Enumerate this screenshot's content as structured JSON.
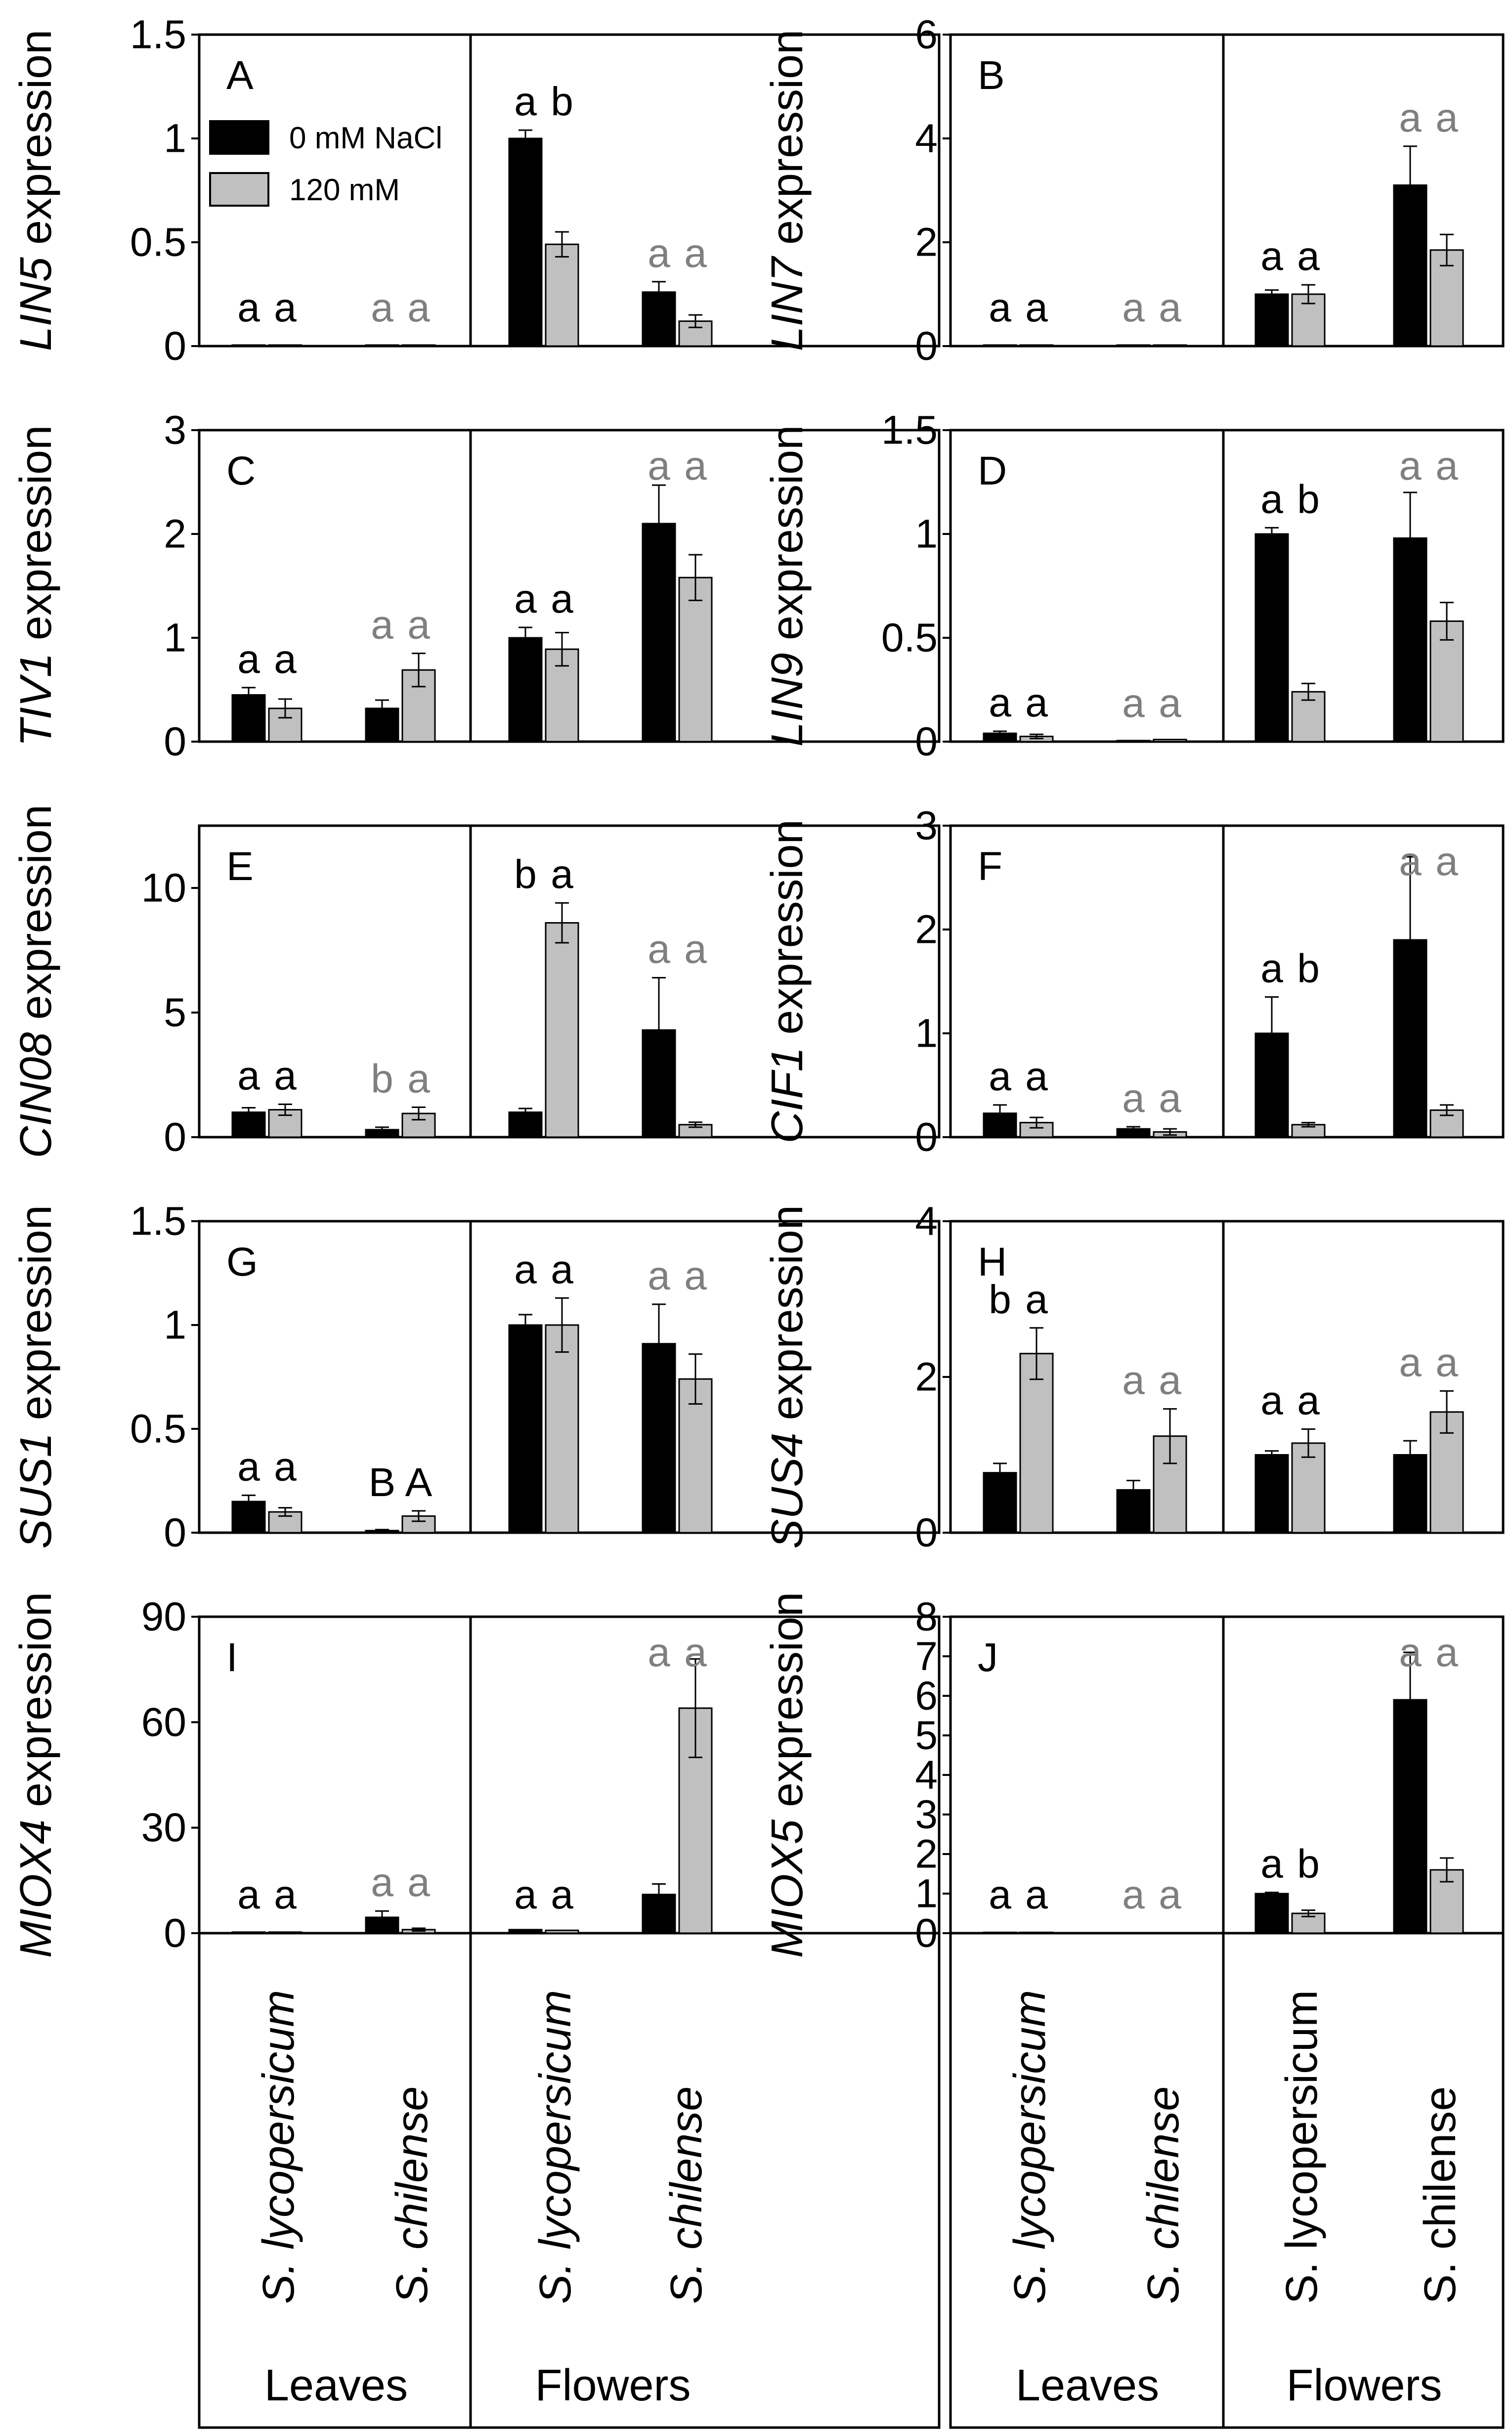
{
  "figure": {
    "legend": {
      "entries": [
        {
          "label": "0 mM NaCl",
          "color": "#000000"
        },
        {
          "label": "120 mM",
          "color": "#c0c0c0"
        }
      ]
    },
    "axis_labels": {
      "species": [
        "S. lycopersicum",
        "S. chilense",
        "S. lycopersicum",
        "S. chilense"
      ],
      "tissues": [
        "Leaves",
        "Flowers"
      ]
    },
    "colors": {
      "ctrl_bar": "#000000",
      "salt_bar": "#c0c0c0",
      "letters_black": "#000000",
      "letters_gray": "#7f7f7f"
    }
  },
  "chart_data": [
    {
      "panel": "A",
      "gene": "LIN5",
      "ylabel_suffix": "expression",
      "type": "bar",
      "categories": [
        "S. lycopersicum Leaves",
        "S. chilense Leaves",
        "S. lycopersicum Flowers",
        "S. chilense Flowers"
      ],
      "ylim": [
        0,
        1.5
      ],
      "yticks": [
        "0",
        "0.5",
        "1",
        "1.5"
      ],
      "series": [
        {
          "name": "0 mM NaCl",
          "values": [
            0.005,
            0.005,
            1.0,
            0.26
          ],
          "errors": [
            0,
            0,
            0.04,
            0.05
          ]
        },
        {
          "name": "120 mM",
          "values": [
            0.005,
            0.005,
            0.49,
            0.12
          ],
          "errors": [
            0,
            0,
            0.06,
            0.03
          ]
        }
      ],
      "letters": [
        [
          "a",
          "a"
        ],
        [
          "a",
          "a"
        ],
        [
          "a",
          "b"
        ],
        [
          "a",
          "a"
        ]
      ],
      "letter_gray": [
        false,
        true,
        false,
        true
      ]
    },
    {
      "panel": "B",
      "gene": "LIN7",
      "ylabel_suffix": "expression",
      "type": "bar",
      "categories": [
        "S. lycopersicum Leaves",
        "S. chilense Leaves",
        "S. lycopersicum Flowers",
        "S. chilense Flowers"
      ],
      "ylim": [
        0,
        6
      ],
      "yticks": [
        "0",
        "2",
        "4",
        "6"
      ],
      "series": [
        {
          "name": "0 mM NaCl",
          "values": [
            0.02,
            0.02,
            1.0,
            3.1
          ],
          "errors": [
            0,
            0,
            0.08,
            0.75
          ]
        },
        {
          "name": "120 mM",
          "values": [
            0.02,
            0.02,
            1.0,
            1.85
          ],
          "errors": [
            0,
            0,
            0.18,
            0.3
          ]
        }
      ],
      "letters": [
        [
          "a",
          "a"
        ],
        [
          "a",
          "a"
        ],
        [
          "a",
          "a"
        ],
        [
          "a",
          "a"
        ]
      ],
      "letter_gray": [
        false,
        true,
        false,
        true
      ]
    },
    {
      "panel": "C",
      "gene": "TIV1",
      "ylabel_suffix": "expression",
      "type": "bar",
      "categories": [
        "S. lycopersicum Leaves",
        "S. chilense Leaves",
        "S. lycopersicum Flowers",
        "S. chilense Flowers"
      ],
      "ylim": [
        0,
        3
      ],
      "yticks": [
        "0",
        "1",
        "2",
        "3"
      ],
      "series": [
        {
          "name": "0 mM NaCl",
          "values": [
            0.45,
            0.32,
            1.0,
            2.1
          ],
          "errors": [
            0.07,
            0.08,
            0.1,
            0.37
          ]
        },
        {
          "name": "120 mM",
          "values": [
            0.32,
            0.69,
            0.89,
            1.58
          ],
          "errors": [
            0.09,
            0.16,
            0.16,
            0.22
          ]
        }
      ],
      "letters": [
        [
          "a",
          "a"
        ],
        [
          "a",
          "a"
        ],
        [
          "a",
          "a"
        ],
        [
          "a",
          "a"
        ]
      ],
      "letter_gray": [
        false,
        true,
        false,
        true
      ]
    },
    {
      "panel": "D",
      "gene": "LIN9",
      "ylabel_suffix": "expression",
      "type": "bar",
      "categories": [
        "S. lycopersicum Leaves",
        "S. chilense Leaves",
        "S. lycopersicum Flowers",
        "S. chilense Flowers"
      ],
      "ylim": [
        0,
        1.5
      ],
      "yticks": [
        "0",
        "0.5",
        "1",
        "1.5"
      ],
      "series": [
        {
          "name": "0 mM NaCl",
          "values": [
            0.04,
            0.005,
            1.0,
            0.98
          ],
          "errors": [
            0.01,
            0,
            0.03,
            0.22
          ]
        },
        {
          "name": "120 mM",
          "values": [
            0.025,
            0.01,
            0.24,
            0.58
          ],
          "errors": [
            0.01,
            0,
            0.04,
            0.09
          ]
        }
      ],
      "letters": [
        [
          "a",
          "a"
        ],
        [
          "a",
          "a"
        ],
        [
          "a",
          "b"
        ],
        [
          "a",
          "a"
        ]
      ],
      "letter_gray": [
        false,
        true,
        false,
        true
      ]
    },
    {
      "panel": "E",
      "gene": "CIN08",
      "ylabel_suffix": "expression",
      "type": "bar",
      "categories": [
        "S. lycopersicum Leaves",
        "S. chilense Leaves",
        "S. lycopersicum Flowers",
        "S. chilense Flowers"
      ],
      "ylim": [
        0,
        12.5
      ],
      "yticks": [
        "0",
        "5",
        "10"
      ],
      "ytick_values": [
        0,
        5,
        10
      ],
      "series": [
        {
          "name": "0 mM NaCl",
          "values": [
            1.0,
            0.3,
            1.0,
            4.3
          ],
          "errors": [
            0.18,
            0.1,
            0.15,
            2.1
          ]
        },
        {
          "name": "120 mM",
          "values": [
            1.1,
            0.95,
            8.6,
            0.5
          ],
          "errors": [
            0.22,
            0.25,
            0.8,
            0.1
          ]
        }
      ],
      "letters": [
        [
          "a",
          "a"
        ],
        [
          "b",
          "a"
        ],
        [
          "b",
          "a"
        ],
        [
          "a",
          "a"
        ]
      ],
      "letter_gray": [
        false,
        true,
        false,
        true
      ]
    },
    {
      "panel": "F",
      "gene": "CIF1",
      "ylabel_suffix": "expression",
      "type": "bar",
      "categories": [
        "S. lycopersicum Leaves",
        "S. chilense Leaves",
        "S. lycopersicum Flowers",
        "S. chilense Flowers"
      ],
      "ylim": [
        0,
        3
      ],
      "yticks": [
        "0",
        "1",
        "2",
        "3"
      ],
      "series": [
        {
          "name": "0 mM NaCl",
          "values": [
            0.23,
            0.08,
            1.0,
            1.9
          ],
          "errors": [
            0.08,
            0.02,
            0.35,
            0.8
          ]
        },
        {
          "name": "120 mM",
          "values": [
            0.14,
            0.05,
            0.12,
            0.26
          ],
          "errors": [
            0.05,
            0.03,
            0.02,
            0.05
          ]
        }
      ],
      "letters": [
        [
          "a",
          "a"
        ],
        [
          "a",
          "a"
        ],
        [
          "a",
          "b"
        ],
        [
          "a",
          "a"
        ]
      ],
      "letter_gray": [
        false,
        true,
        false,
        true
      ]
    },
    {
      "panel": "G",
      "gene": "SUS1",
      "ylabel_suffix": "expression",
      "type": "bar",
      "categories": [
        "S. lycopersicum Leaves",
        "S. chilense Leaves",
        "S. lycopersicum Flowers",
        "S. chilense Flowers"
      ],
      "ylim": [
        0,
        1.5
      ],
      "yticks": [
        "0",
        "0.5",
        "1",
        "1.5"
      ],
      "series": [
        {
          "name": "0 mM NaCl",
          "values": [
            0.15,
            0.01,
            1.0,
            0.91
          ],
          "errors": [
            0.03,
            0.005,
            0.05,
            0.19
          ]
        },
        {
          "name": "120 mM",
          "values": [
            0.1,
            0.08,
            1.0,
            0.74
          ],
          "errors": [
            0.02,
            0.025,
            0.13,
            0.12
          ]
        }
      ],
      "letters": [
        [
          "a",
          "a"
        ],
        [
          "B",
          "A"
        ],
        [
          "a",
          "a"
        ],
        [
          "a",
          "a"
        ]
      ],
      "letter_gray": [
        false,
        false,
        false,
        true
      ]
    },
    {
      "panel": "H",
      "gene": "SUS4",
      "ylabel_suffix": "expression",
      "type": "bar",
      "categories": [
        "S. lycopersicum Leaves",
        "S. chilense Leaves",
        "S. lycopersicum Flowers",
        "S. chilense Flowers"
      ],
      "ylim": [
        0,
        4
      ],
      "yticks": [
        "0",
        "2",
        "4"
      ],
      "ytick_values": [
        0,
        2,
        4
      ],
      "series": [
        {
          "name": "0 mM NaCl",
          "values": [
            0.77,
            0.55,
            1.0,
            1.0
          ],
          "errors": [
            0.12,
            0.12,
            0.05,
            0.18
          ]
        },
        {
          "name": "120 mM",
          "values": [
            2.3,
            1.24,
            1.15,
            1.55
          ],
          "errors": [
            0.33,
            0.35,
            0.18,
            0.27
          ]
        }
      ],
      "letters": [
        [
          "b",
          "a"
        ],
        [
          "a",
          "a"
        ],
        [
          "a",
          "a"
        ],
        [
          "a",
          "a"
        ]
      ],
      "letter_gray": [
        false,
        true,
        false,
        true
      ]
    },
    {
      "panel": "I",
      "gene": "MIOX4",
      "ylabel_suffix": "expression",
      "type": "bar",
      "categories": [
        "S. lycopersicum Leaves",
        "S. chilense Leaves",
        "S. lycopersicum Flowers",
        "S. chilense Flowers"
      ],
      "ylim": [
        0,
        90
      ],
      "yticks": [
        "0",
        "30",
        "60",
        "90"
      ],
      "series": [
        {
          "name": "0 mM NaCl",
          "values": [
            0.3,
            4.5,
            1.0,
            11
          ],
          "errors": [
            0,
            1.8,
            0,
            3
          ]
        },
        {
          "name": "120 mM",
          "values": [
            0.3,
            1.0,
            0.8,
            64
          ],
          "errors": [
            0,
            0.4,
            0,
            14
          ]
        }
      ],
      "letters": [
        [
          "a",
          "a"
        ],
        [
          "a",
          "a"
        ],
        [
          "a",
          "a"
        ],
        [
          "a",
          "a"
        ]
      ],
      "letter_gray": [
        false,
        true,
        false,
        true
      ]
    },
    {
      "panel": "J",
      "gene": "MIOX5",
      "ylabel_suffix": "expression",
      "type": "bar",
      "categories": [
        "S. lycopersicum Leaves",
        "S. chilense Leaves",
        "S. lycopersicum Flowers",
        "S. chilense Flowers"
      ],
      "ylim": [
        0,
        8
      ],
      "yticks": [
        "0",
        "1",
        "2",
        "3",
        "4",
        "5",
        "6",
        "7",
        "8"
      ],
      "series": [
        {
          "name": "0 mM NaCl",
          "values": [
            0.02,
            0,
            1.0,
            5.9
          ],
          "errors": [
            0,
            0,
            0.03,
            1.2
          ]
        },
        {
          "name": "120 mM",
          "values": [
            0.02,
            0,
            0.5,
            1.6
          ],
          "errors": [
            0,
            0,
            0.08,
            0.3
          ]
        }
      ],
      "letters": [
        [
          "a",
          "a"
        ],
        [
          "a",
          "a"
        ],
        [
          "a",
          "b"
        ],
        [
          "a",
          "a"
        ]
      ],
      "letter_gray": [
        false,
        true,
        false,
        true
      ]
    }
  ]
}
